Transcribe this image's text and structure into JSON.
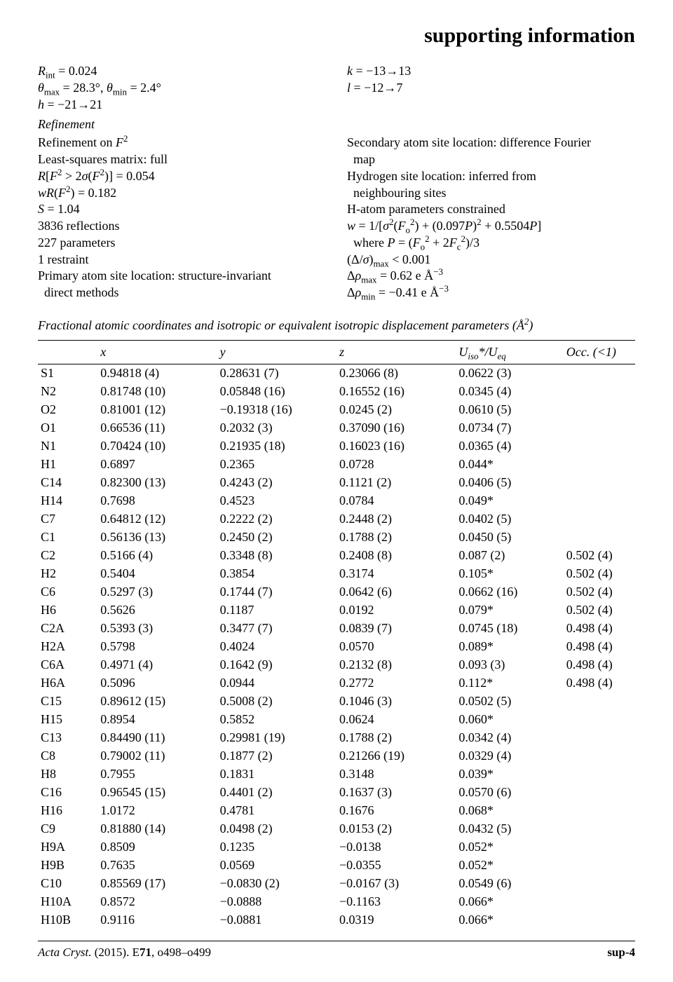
{
  "header": "supporting information",
  "block1_left": [
    "<i>R</i><sub>int</sub> = 0.024",
    "<i>θ</i><sub>max</sub> = 28.3°, <i>θ</i><sub>min</sub> = 2.4°",
    "<i>h</i> = −21→21"
  ],
  "block1_right": [
    "<i>k</i> = −13→13",
    "<i>l</i> = −12→7"
  ],
  "refine_title": "Refinement",
  "block2_left": [
    "Refinement on <i>F</i><sup>2</sup>",
    "Least-squares matrix: full",
    "<i>R</i>[<i>F</i><sup>2</sup> > 2<i>σ</i>(<i>F</i><sup>2</sup>)] = 0.054",
    "<i>wR</i>(<i>F</i><sup>2</sup>) = 0.182",
    "<i>S</i> = 1.04",
    "3836 reflections",
    "227 parameters",
    "1 restraint",
    "Primary atom site location: structure-invariant",
    "&nbsp;&nbsp;direct methods"
  ],
  "block2_right": [
    "Secondary atom site location: difference Fourier",
    "&nbsp;&nbsp;map",
    "Hydrogen site location: inferred from",
    "&nbsp;&nbsp;neighbouring sites",
    "H-atom parameters constrained",
    "<i>w</i> = 1/[<i>σ</i><sup>2</sup>(<i>F</i><sub>o</sub><sup>2</sup>) + (0.097<i>P</i>)<sup>2</sup> + 0.5504<i>P</i>]",
    "&nbsp;&nbsp;where <i>P</i> = (<i>F</i><sub>o</sub><sup>2</sup> + 2<i>F</i><sub>c</sub><sup>2</sup>)/3",
    "(Δ/<i>σ</i>)<sub>max</sub> &lt; 0.001",
    "Δ<i>ρ</i><sub>max</sub> = 0.62 e Å<sup>−3</sup>",
    "Δ<i>ρ</i><sub>min</sub> = −0.41 e Å<sup>−3</sup>"
  ],
  "table_heading": "Fractional atomic coordinates and isotropic or equivalent isotropic displacement parameters (Å<sup>2</sup>)",
  "table": {
    "columns": [
      "",
      "x",
      "y",
      "z",
      "U<sub>iso</sub>*/U<sub>eq</sub>",
      "Occ. (<1)"
    ],
    "rows": [
      [
        "S1",
        "0.94818 (4)",
        "0.28631 (7)",
        "0.23066 (8)",
        "0.0622 (3)",
        ""
      ],
      [
        "N2",
        "0.81748 (10)",
        "0.05848 (16)",
        "0.16552 (16)",
        "0.0345 (4)",
        ""
      ],
      [
        "O2",
        "0.81001 (12)",
        "−0.19318 (16)",
        "0.0245 (2)",
        "0.0610 (5)",
        ""
      ],
      [
        "O1",
        "0.66536 (11)",
        "0.2032 (3)",
        "0.37090 (16)",
        "0.0734 (7)",
        ""
      ],
      [
        "N1",
        "0.70424 (10)",
        "0.21935 (18)",
        "0.16023 (16)",
        "0.0365 (4)",
        ""
      ],
      [
        "H1",
        "0.6897",
        "0.2365",
        "0.0728",
        "0.044*",
        ""
      ],
      [
        "C14",
        "0.82300 (13)",
        "0.4243 (2)",
        "0.1121 (2)",
        "0.0406 (5)",
        ""
      ],
      [
        "H14",
        "0.7698",
        "0.4523",
        "0.0784",
        "0.049*",
        ""
      ],
      [
        "C7",
        "0.64812 (12)",
        "0.2222 (2)",
        "0.2448 (2)",
        "0.0402 (5)",
        ""
      ],
      [
        "C1",
        "0.56136 (13)",
        "0.2450 (2)",
        "0.1788 (2)",
        "0.0450 (5)",
        ""
      ],
      [
        "C2",
        "0.5166 (4)",
        "0.3348 (8)",
        "0.2408 (8)",
        "0.087 (2)",
        "0.502 (4)"
      ],
      [
        "H2",
        "0.5404",
        "0.3854",
        "0.3174",
        "0.105*",
        "0.502 (4)"
      ],
      [
        "C6",
        "0.5297 (3)",
        "0.1744 (7)",
        "0.0642 (6)",
        "0.0662 (16)",
        "0.502 (4)"
      ],
      [
        "H6",
        "0.5626",
        "0.1187",
        "0.0192",
        "0.079*",
        "0.502 (4)"
      ],
      [
        "C2A",
        "0.5393 (3)",
        "0.3477 (7)",
        "0.0839 (7)",
        "0.0745 (18)",
        "0.498 (4)"
      ],
      [
        "H2A",
        "0.5798",
        "0.4024",
        "0.0570",
        "0.089*",
        "0.498 (4)"
      ],
      [
        "C6A",
        "0.4971 (4)",
        "0.1642 (9)",
        "0.2132 (8)",
        "0.093 (3)",
        "0.498 (4)"
      ],
      [
        "H6A",
        "0.5096",
        "0.0944",
        "0.2772",
        "0.112*",
        "0.498 (4)"
      ],
      [
        "C15",
        "0.89612 (15)",
        "0.5008 (2)",
        "0.1046 (3)",
        "0.0502 (5)",
        ""
      ],
      [
        "H15",
        "0.8954",
        "0.5852",
        "0.0624",
        "0.060*",
        ""
      ],
      [
        "C13",
        "0.84490 (11)",
        "0.29981 (19)",
        "0.1788 (2)",
        "0.0342 (4)",
        ""
      ],
      [
        "C8",
        "0.79002 (11)",
        "0.1877 (2)",
        "0.21266 (19)",
        "0.0329 (4)",
        ""
      ],
      [
        "H8",
        "0.7955",
        "0.1831",
        "0.3148",
        "0.039*",
        ""
      ],
      [
        "C16",
        "0.96545 (15)",
        "0.4401 (2)",
        "0.1637 (3)",
        "0.0570 (6)",
        ""
      ],
      [
        "H16",
        "1.0172",
        "0.4781",
        "0.1676",
        "0.068*",
        ""
      ],
      [
        "C9",
        "0.81880 (14)",
        "0.0498 (2)",
        "0.0153 (2)",
        "0.0432 (5)",
        ""
      ],
      [
        "H9A",
        "0.8509",
        "0.1235",
        "−0.0138",
        "0.052*",
        ""
      ],
      [
        "H9B",
        "0.7635",
        "0.0569",
        "−0.0355",
        "0.052*",
        ""
      ],
      [
        "C10",
        "0.85569 (17)",
        "−0.0830 (2)",
        "−0.0167 (3)",
        "0.0549 (6)",
        ""
      ],
      [
        "H10A",
        "0.8572",
        "−0.0888",
        "−0.1163",
        "0.066*",
        ""
      ],
      [
        "H10B",
        "0.9116",
        "−0.0881",
        "0.0319",
        "0.066*",
        ""
      ]
    ]
  },
  "footer_left": "Acta Cryst. <span style='font-style:normal'>(2015). E</span><b style='font-style:normal'>71</b><span style='font-style:normal'>, o498–o499</span>",
  "footer_right": "sup-4"
}
